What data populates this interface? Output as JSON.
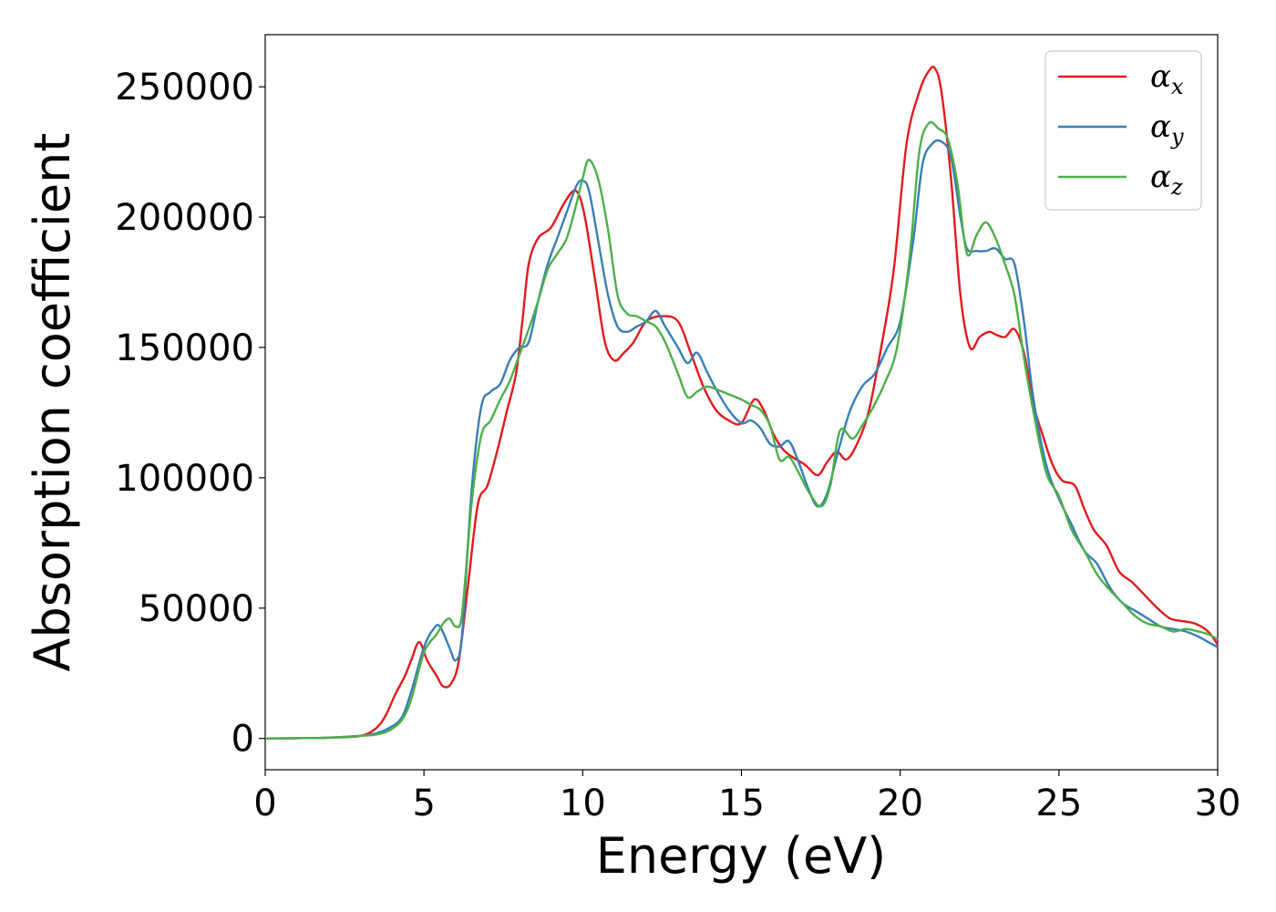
{
  "chart_data": {
    "type": "line",
    "xlabel": "Energy (eV)",
    "ylabel": "Absorption coefficient",
    "xlim": [
      0,
      30
    ],
    "ylim": [
      -12000,
      270000
    ],
    "xticks": [
      "0",
      "5",
      "10",
      "15",
      "20",
      "25",
      "30"
    ],
    "yticks": [
      "0",
      "50000",
      "100000",
      "150000",
      "200000",
      "250000"
    ],
    "grid": false,
    "legend_position": "top-right",
    "series": [
      {
        "name": "α_x",
        "legend_symbol": "α",
        "legend_subscript": "x",
        "color": "#e41a1c",
        "x": [
          0,
          1,
          2,
          3,
          3.5,
          3.8,
          4.1,
          4.4,
          4.6,
          4.85,
          5.1,
          5.4,
          5.6,
          5.85,
          6.1,
          6.4,
          6.7,
          7.0,
          7.3,
          7.6,
          7.9,
          8.1,
          8.3,
          8.6,
          9.0,
          9.4,
          9.7,
          9.9,
          10.1,
          10.4,
          10.7,
          11.0,
          11.3,
          11.6,
          12.0,
          12.5,
          13.0,
          13.4,
          13.8,
          14.2,
          14.6,
          15.0,
          15.4,
          15.7,
          16.0,
          16.3,
          16.6,
          17.0,
          17.4,
          17.7,
          18.0,
          18.3,
          18.6,
          19.0,
          19.4,
          19.8,
          20.2,
          20.6,
          20.9,
          21.1,
          21.3,
          21.6,
          21.9,
          22.2,
          22.5,
          22.8,
          23.0,
          23.3,
          23.6,
          23.9,
          24.2,
          24.5,
          24.8,
          25.1,
          25.5,
          25.8,
          26.1,
          26.5,
          26.9,
          27.3,
          27.7,
          28.1,
          28.5,
          28.9,
          29.3,
          29.7,
          30
        ],
        "y": [
          0,
          100,
          300,
          1000,
          4000,
          9000,
          17000,
          24000,
          30000,
          37000,
          30000,
          24000,
          20000,
          21000,
          30000,
          60000,
          90000,
          97000,
          110000,
          125000,
          140000,
          160000,
          182000,
          192000,
          196000,
          205000,
          210000,
          208000,
          198000,
          175000,
          152000,
          145000,
          148000,
          152000,
          160000,
          162000,
          160000,
          148000,
          135000,
          126000,
          122000,
          121000,
          130000,
          126000,
          117000,
          111000,
          108000,
          105000,
          101000,
          106000,
          110000,
          107000,
          112000,
          125000,
          150000,
          180000,
          228000,
          248000,
          256000,
          257000,
          248000,
          215000,
          170000,
          150000,
          154000,
          156000,
          155000,
          154000,
          157000,
          148000,
          128000,
          116000,
          105000,
          99000,
          97000,
          88000,
          80000,
          74000,
          64000,
          60000,
          55000,
          50000,
          46000,
          45000,
          44000,
          41000,
          36000
        ]
      },
      {
        "name": "α_y",
        "legend_symbol": "α",
        "legend_subscript": "y",
        "color": "#377eb8",
        "x": [
          0,
          1,
          2,
          3,
          3.5,
          3.9,
          4.3,
          4.6,
          5.0,
          5.3,
          5.5,
          5.8,
          6.0,
          6.2,
          6.5,
          6.8,
          7.1,
          7.4,
          7.7,
          8.0,
          8.3,
          8.6,
          8.9,
          9.2,
          9.5,
          9.8,
          10.0,
          10.2,
          10.5,
          10.8,
          11.1,
          11.4,
          11.7,
          12.0,
          12.3,
          12.6,
          13.0,
          13.3,
          13.6,
          13.9,
          14.2,
          14.6,
          15.0,
          15.3,
          15.6,
          15.9,
          16.2,
          16.5,
          16.8,
          17.1,
          17.4,
          17.7,
          18.0,
          18.4,
          18.8,
          19.2,
          19.6,
          20.0,
          20.4,
          20.7,
          21.0,
          21.3,
          21.6,
          21.9,
          22.1,
          22.4,
          22.7,
          23.0,
          23.3,
          23.6,
          23.9,
          24.2,
          24.6,
          25.0,
          25.4,
          25.8,
          26.2,
          26.6,
          27.0,
          27.4,
          27.8,
          28.2,
          28.6,
          29.0,
          29.4,
          29.7,
          30
        ],
        "y": [
          0,
          100,
          300,
          1000,
          2000,
          4000,
          8000,
          18000,
          35000,
          42000,
          43000,
          35000,
          30000,
          40000,
          95000,
          127000,
          133000,
          136000,
          145000,
          150000,
          152000,
          168000,
          182000,
          192000,
          202000,
          212000,
          214000,
          210000,
          190000,
          170000,
          158000,
          156000,
          158000,
          160000,
          164000,
          158000,
          150000,
          144000,
          148000,
          141000,
          134000,
          126000,
          121000,
          122000,
          119000,
          113000,
          112000,
          114000,
          106000,
          96000,
          89000,
          94000,
          108000,
          125000,
          135000,
          140000,
          150000,
          160000,
          190000,
          220000,
          228000,
          229000,
          223000,
          200000,
          188000,
          187000,
          187000,
          188000,
          184000,
          182000,
          160000,
          130000,
          105000,
          92000,
          82000,
          72000,
          67000,
          58000,
          52000,
          49000,
          46000,
          43000,
          42000,
          41000,
          39000,
          37000,
          35000
        ]
      },
      {
        "name": "α_z",
        "legend_symbol": "α",
        "legend_subscript": "z",
        "color": "#4daf4a",
        "x": [
          0,
          1,
          2,
          3,
          3.5,
          3.9,
          4.3,
          4.6,
          5.0,
          5.4,
          5.6,
          5.8,
          6.0,
          6.2,
          6.5,
          6.8,
          7.1,
          7.4,
          7.7,
          8.0,
          8.3,
          8.6,
          8.9,
          9.2,
          9.5,
          9.8,
          10.0,
          10.2,
          10.5,
          10.8,
          11.1,
          11.4,
          11.7,
          12.0,
          12.3,
          12.6,
          13.0,
          13.3,
          13.6,
          13.9,
          14.2,
          14.6,
          15.0,
          15.3,
          15.6,
          15.9,
          16.2,
          16.5,
          16.8,
          17.1,
          17.5,
          17.8,
          18.1,
          18.5,
          18.8,
          19.1,
          19.5,
          19.9,
          20.3,
          20.6,
          20.9,
          21.2,
          21.5,
          21.8,
          22.1,
          22.4,
          22.7,
          23.0,
          23.3,
          23.6,
          23.9,
          24.2,
          24.6,
          25.0,
          25.4,
          25.8,
          26.2,
          26.6,
          27.0,
          27.4,
          27.8,
          28.2,
          28.6,
          29.0,
          29.4,
          29.7,
          30
        ],
        "y": [
          0,
          100,
          300,
          1000,
          1500,
          3000,
          7000,
          15000,
          33000,
          40000,
          44000,
          46000,
          43000,
          48000,
          90000,
          116000,
          122000,
          130000,
          137000,
          147000,
          157000,
          168000,
          180000,
          186000,
          192000,
          205000,
          215000,
          222000,
          214000,
          195000,
          170000,
          163000,
          162000,
          160000,
          158000,
          152000,
          140000,
          131000,
          133000,
          135000,
          134000,
          132000,
          130000,
          128000,
          126000,
          120000,
          107000,
          108000,
          102000,
          95000,
          89000,
          97000,
          118000,
          115000,
          120000,
          126000,
          136000,
          150000,
          185000,
          225000,
          236000,
          234000,
          230000,
          213000,
          186000,
          193000,
          198000,
          192000,
          182000,
          170000,
          146000,
          125000,
          102000,
          93000,
          80000,
          72000,
          63000,
          57000,
          52000,
          47000,
          44000,
          43000,
          41000,
          42000,
          41000,
          40000,
          38000
        ]
      }
    ]
  }
}
